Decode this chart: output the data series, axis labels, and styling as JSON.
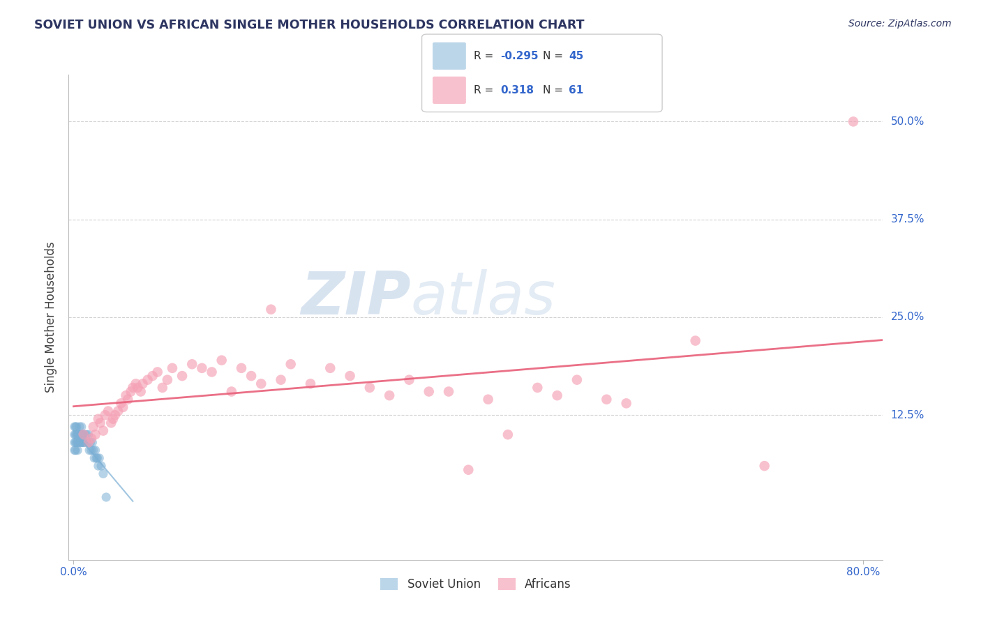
{
  "title": "SOVIET UNION VS AFRICAN SINGLE MOTHER HOUSEHOLDS CORRELATION CHART",
  "source": "Source: ZipAtlas.com",
  "ylabel": "Single Mother Households",
  "ytick_labels": [
    "12.5%",
    "25.0%",
    "37.5%",
    "50.0%"
  ],
  "ytick_values": [
    0.125,
    0.25,
    0.375,
    0.5
  ],
  "xlim": [
    -0.005,
    0.82
  ],
  "ylim": [
    -0.06,
    0.56
  ],
  "legend_soviet_r": "-0.295",
  "legend_soviet_n": "45",
  "legend_african_r": "0.318",
  "legend_african_n": "61",
  "soviet_color": "#7BAFD4",
  "african_color": "#F5A0B5",
  "soviet_line_color": "#7BAFD4",
  "african_line_color": "#E8607A",
  "background_color": "#FFFFFF",
  "grid_color": "#CCCCCC",
  "title_color": "#2D3561",
  "source_color": "#2D3561",
  "watermark_zip_color": "#D8E4F0",
  "watermark_atlas_color": "#D8E4F0",
  "soviet_points_x": [
    0.001,
    0.001,
    0.001,
    0.001,
    0.002,
    0.002,
    0.002,
    0.002,
    0.003,
    0.003,
    0.003,
    0.004,
    0.004,
    0.004,
    0.005,
    0.005,
    0.006,
    0.006,
    0.007,
    0.007,
    0.008,
    0.008,
    0.009,
    0.009,
    0.01,
    0.01,
    0.011,
    0.012,
    0.013,
    0.014,
    0.015,
    0.016,
    0.017,
    0.018,
    0.019,
    0.02,
    0.021,
    0.022,
    0.023,
    0.024,
    0.025,
    0.026,
    0.028,
    0.03,
    0.033
  ],
  "soviet_points_y": [
    0.09,
    0.1,
    0.08,
    0.11,
    0.1,
    0.09,
    0.11,
    0.08,
    0.1,
    0.09,
    0.11,
    0.1,
    0.09,
    0.08,
    0.1,
    0.09,
    0.11,
    0.1,
    0.09,
    0.1,
    0.09,
    0.11,
    0.1,
    0.09,
    0.1,
    0.09,
    0.1,
    0.09,
    0.1,
    0.09,
    0.1,
    0.08,
    0.09,
    0.08,
    0.09,
    0.08,
    0.07,
    0.08,
    0.07,
    0.07,
    0.06,
    0.07,
    0.06,
    0.05,
    0.02
  ],
  "african_points_x": [
    0.01,
    0.015,
    0.018,
    0.02,
    0.022,
    0.025,
    0.027,
    0.03,
    0.032,
    0.035,
    0.038,
    0.04,
    0.042,
    0.045,
    0.048,
    0.05,
    0.053,
    0.055,
    0.058,
    0.06,
    0.063,
    0.065,
    0.068,
    0.07,
    0.075,
    0.08,
    0.085,
    0.09,
    0.095,
    0.1,
    0.11,
    0.12,
    0.13,
    0.14,
    0.15,
    0.16,
    0.17,
    0.18,
    0.19,
    0.2,
    0.21,
    0.22,
    0.24,
    0.26,
    0.28,
    0.3,
    0.32,
    0.34,
    0.36,
    0.38,
    0.4,
    0.42,
    0.44,
    0.47,
    0.49,
    0.51,
    0.54,
    0.56,
    0.63,
    0.7,
    0.79
  ],
  "african_points_y": [
    0.1,
    0.09,
    0.095,
    0.11,
    0.1,
    0.12,
    0.115,
    0.105,
    0.125,
    0.13,
    0.115,
    0.12,
    0.125,
    0.13,
    0.14,
    0.135,
    0.15,
    0.145,
    0.155,
    0.16,
    0.165,
    0.16,
    0.155,
    0.165,
    0.17,
    0.175,
    0.18,
    0.16,
    0.17,
    0.185,
    0.175,
    0.19,
    0.185,
    0.18,
    0.195,
    0.155,
    0.185,
    0.175,
    0.165,
    0.26,
    0.17,
    0.19,
    0.165,
    0.185,
    0.175,
    0.16,
    0.15,
    0.17,
    0.155,
    0.155,
    0.055,
    0.145,
    0.1,
    0.16,
    0.15,
    0.17,
    0.145,
    0.14,
    0.22,
    0.06,
    0.5
  ]
}
